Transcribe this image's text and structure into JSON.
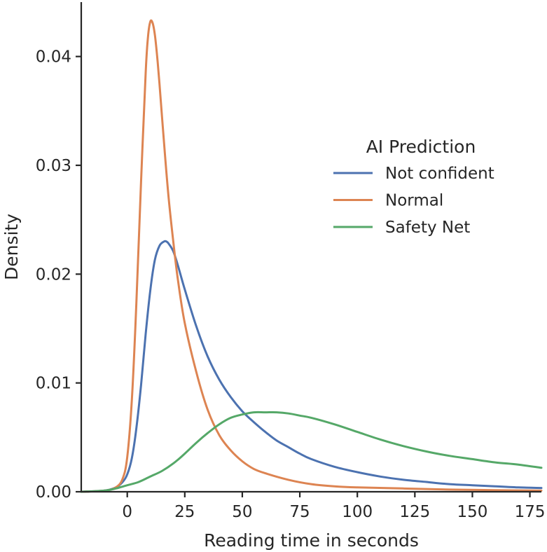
{
  "chart_data": {
    "type": "line",
    "xlabel": "Reading time in seconds",
    "ylabel": "Density",
    "xlim": [
      -20,
      180
    ],
    "ylim": [
      0,
      0.045
    ],
    "xticks": [
      0,
      25,
      50,
      75,
      100,
      125,
      150,
      175
    ],
    "yticks": [
      0.0,
      0.01,
      0.02,
      0.03,
      0.04
    ],
    "xtick_labels": [
      "0",
      "25",
      "50",
      "75",
      "100",
      "125",
      "150",
      "175"
    ],
    "ytick_labels": [
      "0.00",
      "0.01",
      "0.02",
      "0.03",
      "0.04"
    ],
    "grid": false,
    "legend": {
      "title": "AI Prediction",
      "position": "right"
    },
    "series": [
      {
        "name": "Not confident",
        "color": "#4c72b0",
        "x": [
          -20,
          -10,
          -5,
          -2,
          0,
          2,
          4,
          6,
          8,
          10,
          12,
          14,
          16,
          17,
          18,
          20,
          22,
          25,
          30,
          35,
          40,
          45,
          50,
          55,
          60,
          65,
          70,
          75,
          80,
          90,
          100,
          110,
          120,
          130,
          140,
          150,
          160,
          170,
          180
        ],
        "y": [
          0.0,
          0.0001,
          0.0004,
          0.0009,
          0.0016,
          0.0031,
          0.0059,
          0.0098,
          0.0145,
          0.0185,
          0.0213,
          0.0226,
          0.023,
          0.023,
          0.0228,
          0.0221,
          0.0208,
          0.0186,
          0.0152,
          0.0124,
          0.0103,
          0.0087,
          0.0074,
          0.0064,
          0.0055,
          0.0047,
          0.0041,
          0.0035,
          0.003,
          0.0023,
          0.0018,
          0.0014,
          0.0011,
          0.0009,
          0.0007,
          0.0006,
          0.0005,
          0.0004,
          0.00035
        ]
      },
      {
        "name": "Normal",
        "color": "#dd8452",
        "x": [
          -20,
          -10,
          -5,
          -2,
          0,
          2,
          4,
          6,
          8,
          9,
          10,
          11,
          12,
          13,
          14,
          16,
          18,
          20,
          22,
          25,
          30,
          35,
          40,
          45,
          50,
          55,
          60,
          70,
          80,
          90,
          100,
          120,
          140,
          160,
          180
        ],
        "y": [
          0.0,
          0.0001,
          0.0004,
          0.0012,
          0.0032,
          0.0085,
          0.0175,
          0.0285,
          0.0385,
          0.0418,
          0.0432,
          0.0431,
          0.042,
          0.04,
          0.0375,
          0.032,
          0.027,
          0.023,
          0.0195,
          0.0155,
          0.011,
          0.0075,
          0.0052,
          0.0038,
          0.0028,
          0.0021,
          0.0017,
          0.0011,
          0.0007,
          0.0005,
          0.0004,
          0.0003,
          0.0002,
          0.00015,
          0.0001
        ]
      },
      {
        "name": "Safety Net",
        "color": "#55a868",
        "x": [
          -20,
          -10,
          -5,
          0,
          5,
          10,
          15,
          20,
          25,
          30,
          35,
          40,
          45,
          50,
          55,
          60,
          65,
          70,
          75,
          80,
          90,
          100,
          110,
          120,
          130,
          140,
          150,
          160,
          170,
          180
        ],
        "y": [
          0.0,
          0.0001,
          0.0003,
          0.0006,
          0.0009,
          0.0014,
          0.0019,
          0.0026,
          0.0035,
          0.0045,
          0.0054,
          0.0062,
          0.0068,
          0.0071,
          0.0073,
          0.0073,
          0.0073,
          0.0072,
          0.007,
          0.0068,
          0.0062,
          0.0055,
          0.0048,
          0.0042,
          0.0037,
          0.0033,
          0.003,
          0.0027,
          0.0025,
          0.0022
        ]
      }
    ]
  }
}
